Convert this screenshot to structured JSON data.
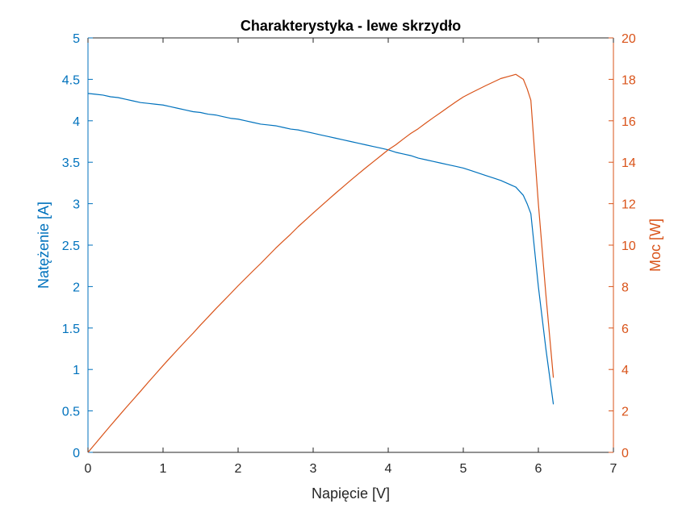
{
  "chart_data": {
    "type": "line",
    "title": "Charakterystyka - lewe skrzydło",
    "xlabel": "Napięcie [V]",
    "ylabel_left": "Natężenie [A]",
    "ylabel_right": "Moc [W]",
    "xlim": [
      0,
      7
    ],
    "ylim_left": [
      0,
      5
    ],
    "ylim_right": [
      0,
      20
    ],
    "x_ticks": [
      0,
      1,
      2,
      3,
      4,
      5,
      6,
      7
    ],
    "y_left_ticks": [
      "0",
      "0.5",
      "1",
      "1.5",
      "2",
      "2.5",
      "3",
      "3.5",
      "4",
      "4.5",
      "5"
    ],
    "y_right_ticks": [
      "0",
      "2",
      "4",
      "6",
      "8",
      "10",
      "12",
      "14",
      "16",
      "18",
      "20"
    ],
    "grid": false,
    "colors": {
      "current": "#0072BD",
      "power": "#D95319",
      "axis_text": "#262626"
    },
    "series": [
      {
        "axis": "left",
        "x": [
          0,
          0.1,
          0.2,
          0.3,
          0.4,
          0.5,
          0.6,
          0.7,
          0.8,
          0.9,
          1.0,
          1.1,
          1.2,
          1.3,
          1.4,
          1.5,
          1.6,
          1.7,
          1.8,
          1.9,
          2.0,
          2.1,
          2.2,
          2.3,
          2.4,
          2.5,
          2.6,
          2.7,
          2.8,
          2.9,
          3.0,
          3.1,
          3.2,
          3.3,
          3.4,
          3.5,
          3.6,
          3.7,
          3.8,
          3.9,
          4.0,
          4.1,
          4.2,
          4.3,
          4.4,
          4.5,
          4.6,
          4.7,
          4.8,
          4.9,
          5.0,
          5.1,
          5.2,
          5.3,
          5.4,
          5.5,
          5.6,
          5.7,
          5.8,
          5.85,
          5.9,
          6.0,
          6.1,
          6.2
        ],
        "values": [
          4.33,
          4.32,
          4.31,
          4.29,
          4.28,
          4.26,
          4.24,
          4.22,
          4.21,
          4.2,
          4.19,
          4.17,
          4.15,
          4.13,
          4.11,
          4.1,
          4.08,
          4.07,
          4.05,
          4.03,
          4.02,
          4.0,
          3.98,
          3.96,
          3.95,
          3.94,
          3.92,
          3.9,
          3.89,
          3.87,
          3.85,
          3.83,
          3.81,
          3.79,
          3.77,
          3.75,
          3.73,
          3.71,
          3.69,
          3.67,
          3.65,
          3.62,
          3.6,
          3.58,
          3.55,
          3.53,
          3.51,
          3.49,
          3.47,
          3.45,
          3.43,
          3.4,
          3.37,
          3.34,
          3.31,
          3.28,
          3.24,
          3.2,
          3.1,
          3.0,
          2.88,
          2.0,
          1.25,
          0.58
        ]
      },
      {
        "axis": "right",
        "x": [
          0,
          0.1,
          0.2,
          0.3,
          0.4,
          0.5,
          0.6,
          0.7,
          0.8,
          0.9,
          1.0,
          1.1,
          1.2,
          1.3,
          1.4,
          1.5,
          1.6,
          1.7,
          1.8,
          1.9,
          2.0,
          2.1,
          2.2,
          2.3,
          2.4,
          2.5,
          2.6,
          2.7,
          2.8,
          2.9,
          3.0,
          3.1,
          3.2,
          3.3,
          3.4,
          3.5,
          3.6,
          3.7,
          3.8,
          3.9,
          4.0,
          4.1,
          4.2,
          4.3,
          4.4,
          4.5,
          4.6,
          4.7,
          4.8,
          4.9,
          5.0,
          5.1,
          5.2,
          5.3,
          5.4,
          5.5,
          5.6,
          5.7,
          5.8,
          5.85,
          5.9,
          6.0,
          6.1,
          6.2
        ],
        "values": [
          0,
          0.43,
          0.86,
          1.29,
          1.71,
          2.13,
          2.54,
          2.95,
          3.37,
          3.78,
          4.19,
          4.59,
          4.98,
          5.37,
          5.75,
          6.15,
          6.53,
          6.92,
          7.29,
          7.66,
          8.04,
          8.4,
          8.76,
          9.11,
          9.48,
          9.85,
          10.19,
          10.53,
          10.89,
          11.22,
          11.55,
          11.87,
          12.19,
          12.51,
          12.82,
          13.13,
          13.43,
          13.73,
          14.02,
          14.31,
          14.6,
          14.84,
          15.12,
          15.39,
          15.62,
          15.89,
          16.15,
          16.4,
          16.66,
          16.91,
          17.15,
          17.34,
          17.52,
          17.7,
          17.87,
          18.04,
          18.14,
          18.24,
          18.0,
          17.55,
          16.99,
          12.0,
          7.62,
          3.6
        ]
      }
    ]
  }
}
